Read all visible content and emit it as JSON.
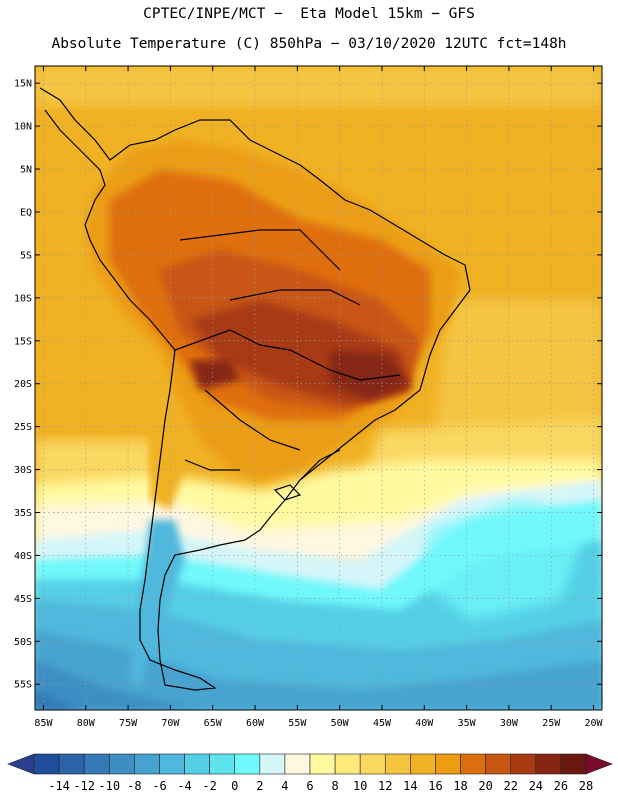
{
  "header": {
    "title_line1": "CPTEC/INPE/MCT −  Eta Model 15km − GFS",
    "title_line2": "Absolute Temperature (C) 850hPa − 03/10/2020 12UTC fct=148h"
  },
  "map": {
    "lon_range": [
      -86,
      -19
    ],
    "lat_range": [
      -58,
      17
    ],
    "lat_ticks": [
      {
        "value": 15,
        "label": "15N"
      },
      {
        "value": 10,
        "label": "10N"
      },
      {
        "value": 5,
        "label": "5N"
      },
      {
        "value": 0,
        "label": "EQ"
      },
      {
        "value": -5,
        "label": "5S"
      },
      {
        "value": -10,
        "label": "10S"
      },
      {
        "value": -15,
        "label": "15S"
      },
      {
        "value": -20,
        "label": "20S"
      },
      {
        "value": -25,
        "label": "25S"
      },
      {
        "value": -30,
        "label": "30S"
      },
      {
        "value": -35,
        "label": "35S"
      },
      {
        "value": -40,
        "label": "40S"
      },
      {
        "value": -45,
        "label": "45S"
      },
      {
        "value": -50,
        "label": "50S"
      },
      {
        "value": -55,
        "label": "55S"
      }
    ],
    "lon_ticks": [
      {
        "value": -85,
        "label": "85W"
      },
      {
        "value": -80,
        "label": "80W"
      },
      {
        "value": -75,
        "label": "75W"
      },
      {
        "value": -70,
        "label": "70W"
      },
      {
        "value": -65,
        "label": "65W"
      },
      {
        "value": -60,
        "label": "60W"
      },
      {
        "value": -55,
        "label": "55W"
      },
      {
        "value": -50,
        "label": "50W"
      },
      {
        "value": -45,
        "label": "45W"
      },
      {
        "value": -40,
        "label": "40W"
      },
      {
        "value": -35,
        "label": "35W"
      },
      {
        "value": -30,
        "label": "30W"
      },
      {
        "value": -25,
        "label": "25W"
      },
      {
        "value": -20,
        "label": "20W"
      }
    ],
    "grid": true
  },
  "colorbar": {
    "labels": [
      "-14",
      "-12",
      "-10",
      "-8",
      "-6",
      "-4",
      "-2",
      "0",
      "2",
      "4",
      "6",
      "8",
      "10",
      "12",
      "14",
      "16",
      "18",
      "20",
      "22",
      "24",
      "26",
      "28"
    ],
    "colors": [
      "#2a3f8f",
      "#1f4e9a",
      "#2b63a8",
      "#3578b6",
      "#3e8ec4",
      "#46a3cf",
      "#4fb8dc",
      "#54cfe6",
      "#5fe3ef",
      "#6ff8fb",
      "#d4f6f9",
      "#fff7e0",
      "#fffaa0",
      "#ffea7a",
      "#fad862",
      "#f5c542",
      "#f0b123",
      "#ec9d12",
      "#df6e10",
      "#c95512",
      "#a83a12",
      "#862612",
      "#6a1a10",
      "#7a0a2a"
    ]
  }
}
